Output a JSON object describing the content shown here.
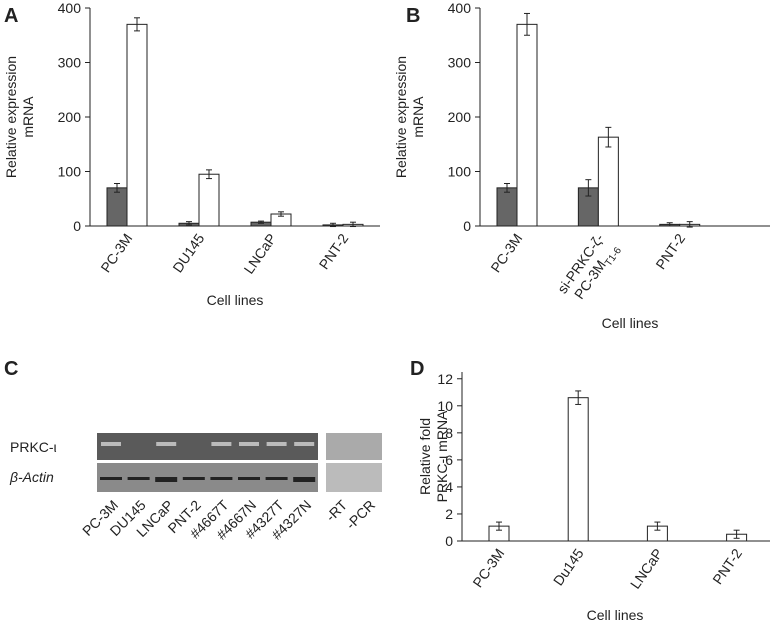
{
  "chart_data": [
    {
      "type": "bar",
      "panel": "A",
      "ylabel": [
        "Relative expression",
        "mRNA"
      ],
      "xlabel": "Cell lines",
      "categories": [
        "PC-3M",
        "DU145",
        "LNCaP",
        "PNT-2"
      ],
      "series": [
        {
          "color": "#666666",
          "values": [
            70,
            5,
            7,
            2
          ],
          "errors": [
            8,
            3,
            2,
            3
          ]
        },
        {
          "color": "#ffffff",
          "values": [
            370,
            95,
            22,
            3
          ],
          "errors": [
            12,
            8,
            4,
            4
          ]
        }
      ],
      "ylim": [
        0,
        400
      ],
      "yticks": [
        0,
        100,
        200,
        300,
        400
      ]
    },
    {
      "type": "bar",
      "panel": "B",
      "ylabel": [
        "Relative expression",
        "mRNA"
      ],
      "xlabel": "Cell lines",
      "categories": [
        "PC-3M",
        [
          "si-PRKC-ζ-",
          "PC-3M",
          "T1-6"
        ],
        "PNT-2"
      ],
      "series": [
        {
          "color": "#666666",
          "values": [
            70,
            70,
            3
          ],
          "errors": [
            8,
            15,
            3
          ]
        },
        {
          "color": "#ffffff",
          "values": [
            370,
            163,
            3
          ],
          "errors": [
            20,
            18,
            5
          ]
        }
      ],
      "ylim": [
        0,
        400
      ],
      "yticks": [
        0,
        100,
        200,
        300,
        400
      ]
    },
    {
      "type": "gel",
      "panel": "C",
      "rows": [
        "PRKC-ι",
        "β-Actin"
      ],
      "lanes": [
        "PC-3M",
        "DU145",
        "LNCaP",
        "PNT-2",
        "#4667T",
        "#4667N",
        "#4327T",
        "#4327N",
        "-RT",
        "-PCR"
      ]
    },
    {
      "type": "bar",
      "panel": "D",
      "ylabel": [
        "Relative fold",
        "PRKC-ι mRNA"
      ],
      "xlabel": "Cell lines",
      "categories": [
        "PC-3M",
        "Du145",
        "LNCaP",
        "PNT-2"
      ],
      "series": [
        {
          "color": "#ffffff",
          "values": [
            1.1,
            10.6,
            1.1,
            0.5
          ],
          "errors": [
            0.3,
            0.5,
            0.3,
            0.3
          ]
        }
      ],
      "ylim": [
        0,
        12.5
      ],
      "yticks": [
        0,
        2,
        4,
        6,
        8,
        10,
        12
      ]
    }
  ]
}
